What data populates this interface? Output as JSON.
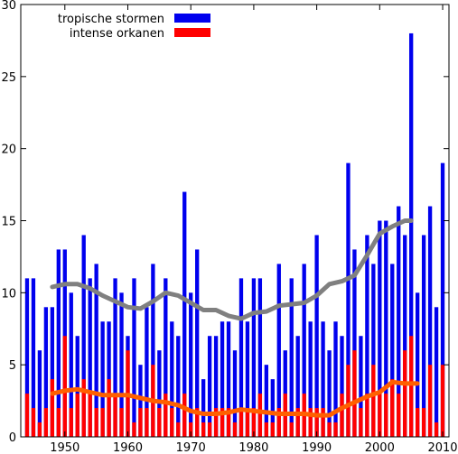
{
  "chart_data": {
    "type": "bar",
    "x": [
      1944,
      1945,
      1946,
      1947,
      1948,
      1949,
      1950,
      1951,
      1952,
      1953,
      1954,
      1955,
      1956,
      1957,
      1958,
      1959,
      1960,
      1961,
      1962,
      1963,
      1964,
      1965,
      1966,
      1967,
      1968,
      1969,
      1970,
      1971,
      1972,
      1973,
      1974,
      1975,
      1976,
      1977,
      1978,
      1979,
      1980,
      1981,
      1982,
      1983,
      1984,
      1985,
      1986,
      1987,
      1988,
      1989,
      1990,
      1991,
      1992,
      1993,
      1994,
      1995,
      1996,
      1997,
      1998,
      1999,
      2000,
      2001,
      2002,
      2003,
      2004,
      2005,
      2006,
      2007,
      2008,
      2009,
      2010
    ],
    "series": [
      {
        "name": "tropische stormen",
        "color": "#0000ee",
        "values": [
          11,
          11,
          6,
          9,
          9,
          13,
          13,
          10,
          7,
          14,
          11,
          12,
          8,
          8,
          11,
          10,
          7,
          11,
          5,
          9,
          12,
          6,
          11,
          8,
          7,
          17,
          10,
          13,
          4,
          7,
          7,
          8,
          8,
          6,
          11,
          8,
          11,
          11,
          5,
          4,
          12,
          6,
          11,
          7,
          12,
          8,
          14,
          8,
          6,
          8,
          7,
          19,
          13,
          7,
          14,
          12,
          15,
          15,
          12,
          16,
          14,
          28,
          10,
          14,
          16,
          9,
          19
        ]
      },
      {
        "name": "intense orkanen",
        "color": "#ff0000",
        "values": [
          3,
          2,
          1,
          2,
          4,
          2,
          7,
          2,
          3,
          4,
          3,
          2,
          2,
          4,
          3,
          2,
          6,
          1,
          2,
          2,
          5,
          2,
          3,
          2,
          1,
          3,
          1,
          2,
          1,
          1,
          2,
          2,
          2,
          1,
          2,
          2,
          2,
          3,
          1,
          1,
          2,
          3,
          1,
          2,
          3,
          2,
          2,
          2,
          1,
          1,
          3,
          5,
          6,
          2,
          3,
          5,
          3,
          3,
          4,
          3,
          6,
          7,
          2,
          2,
          5,
          1,
          5
        ]
      }
    ],
    "trend_lines": [
      {
        "series": "tropische stormen",
        "color": "#808080",
        "x": [
          1948,
          1950,
          1952,
          1954,
          1956,
          1958,
          1960,
          1962,
          1964,
          1966,
          1968,
          1970,
          1972,
          1974,
          1976,
          1978,
          1980,
          1982,
          1984,
          1986,
          1988,
          1990,
          1992,
          1994,
          1996,
          1998,
          2000,
          2002,
          2004,
          2005
        ],
        "y": [
          10.4,
          10.6,
          10.6,
          10.3,
          9.8,
          9.4,
          9.0,
          8.9,
          9.4,
          10.0,
          9.8,
          9.3,
          8.8,
          8.8,
          8.4,
          8.2,
          8.6,
          8.7,
          9.1,
          9.2,
          9.3,
          9.8,
          10.6,
          10.8,
          11.2,
          12.6,
          14.1,
          14.6,
          15.0,
          15.0
        ]
      },
      {
        "series": "intense orkanen",
        "color": "#ff6000",
        "x": [
          1948,
          1950,
          1952,
          1954,
          1956,
          1958,
          1960,
          1962,
          1964,
          1966,
          1968,
          1970,
          1972,
          1974,
          1976,
          1978,
          1980,
          1982,
          1984,
          1986,
          1988,
          1990,
          1992,
          1994,
          1996,
          1998,
          2000,
          2002,
          2004,
          2006
        ],
        "y": [
          3.0,
          3.2,
          3.3,
          3.1,
          2.9,
          2.9,
          2.9,
          2.7,
          2.5,
          2.4,
          2.2,
          1.8,
          1.6,
          1.6,
          1.7,
          1.9,
          1.8,
          1.7,
          1.6,
          1.6,
          1.6,
          1.5,
          1.5,
          2.0,
          2.4,
          2.8,
          3.1,
          3.8,
          3.7,
          3.7
        ]
      }
    ],
    "x_ticks": [
      "1950",
      "1960",
      "1970",
      "1980",
      "1990",
      "2000",
      "2010"
    ],
    "y_ticks": [
      "0",
      "5",
      "10",
      "15",
      "20",
      "25",
      "30"
    ],
    "xlim": [
      1943,
      2011
    ],
    "ylim": [
      0,
      30
    ],
    "legend_position": "top-left",
    "grid": false
  }
}
